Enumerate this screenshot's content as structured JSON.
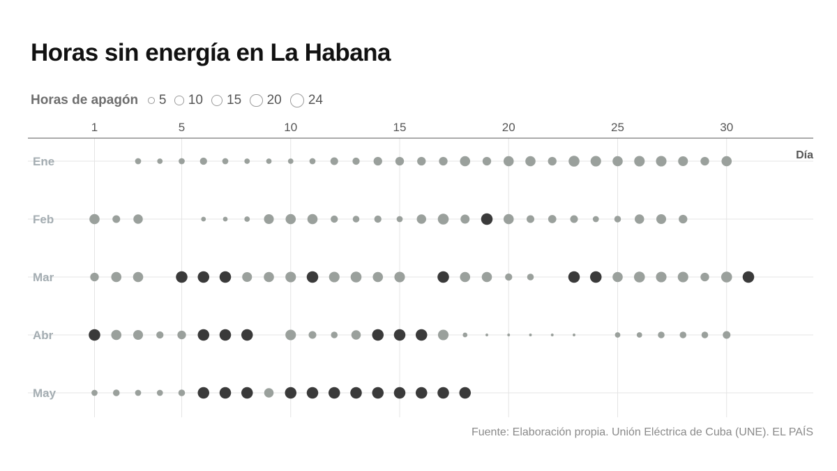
{
  "title": "Horas sin energía en La Habana",
  "legend": {
    "title": "Horas de apagón",
    "items": [
      {
        "label": "5",
        "value": 5
      },
      {
        "label": "10",
        "value": 10
      },
      {
        "label": "15",
        "value": 15
      },
      {
        "label": "20",
        "value": 20
      },
      {
        "label": "24",
        "value": 24
      }
    ]
  },
  "source": "Fuente: Elaboración propia. Unión Eléctrica de Cuba (UNE). EL PAÍS",
  "colors": {
    "normal_dot": "#9aa09c",
    "highlight_dot": "#3a3a3a",
    "month_label": "#a4adb2",
    "grid": "#e4e4e4",
    "axis": "#777777"
  },
  "chart_data": {
    "type": "scatter",
    "title": "Horas sin energía en La Habana",
    "xlabel": "Día",
    "ylabel": "",
    "x_ticks": [
      1,
      5,
      10,
      15,
      20,
      25,
      30
    ],
    "xlim": [
      1,
      31
    ],
    "size_legend": [
      5,
      10,
      15,
      20,
      24
    ],
    "grid": true,
    "months": [
      {
        "name": "Ene",
        "points": [
          {
            "day": 3,
            "hours": 5
          },
          {
            "day": 4,
            "hours": 4
          },
          {
            "day": 5,
            "hours": 5
          },
          {
            "day": 6,
            "hours": 7
          },
          {
            "day": 7,
            "hours": 5
          },
          {
            "day": 8,
            "hours": 4
          },
          {
            "day": 9,
            "hours": 4
          },
          {
            "day": 10,
            "hours": 4
          },
          {
            "day": 11,
            "hours": 5
          },
          {
            "day": 12,
            "hours": 8
          },
          {
            "day": 13,
            "hours": 7
          },
          {
            "day": 14,
            "hours": 10
          },
          {
            "day": 15,
            "hours": 10
          },
          {
            "day": 16,
            "hours": 10
          },
          {
            "day": 17,
            "hours": 10
          },
          {
            "day": 18,
            "hours": 14
          },
          {
            "day": 19,
            "hours": 10
          },
          {
            "day": 20,
            "hours": 14
          },
          {
            "day": 21,
            "hours": 14
          },
          {
            "day": 22,
            "hours": 10
          },
          {
            "day": 23,
            "hours": 16
          },
          {
            "day": 24,
            "hours": 15
          },
          {
            "day": 25,
            "hours": 14
          },
          {
            "day": 26,
            "hours": 15
          },
          {
            "day": 27,
            "hours": 15
          },
          {
            "day": 28,
            "hours": 13
          },
          {
            "day": 29,
            "hours": 10
          },
          {
            "day": 30,
            "hours": 14
          }
        ]
      },
      {
        "name": "Feb",
        "points": [
          {
            "day": 1,
            "hours": 14
          },
          {
            "day": 2,
            "hours": 8
          },
          {
            "day": 3,
            "hours": 12
          },
          {
            "day": 6,
            "hours": 3
          },
          {
            "day": 7,
            "hours": 3
          },
          {
            "day": 8,
            "hours": 4
          },
          {
            "day": 9,
            "hours": 13
          },
          {
            "day": 10,
            "hours": 14
          },
          {
            "day": 11,
            "hours": 14
          },
          {
            "day": 12,
            "hours": 7
          },
          {
            "day": 13,
            "hours": 6
          },
          {
            "day": 14,
            "hours": 7
          },
          {
            "day": 15,
            "hours": 5
          },
          {
            "day": 16,
            "hours": 12
          },
          {
            "day": 17,
            "hours": 16
          },
          {
            "day": 18,
            "hours": 11
          },
          {
            "day": 19,
            "hours": 18,
            "highlight": true
          },
          {
            "day": 20,
            "hours": 14
          },
          {
            "day": 21,
            "hours": 8
          },
          {
            "day": 22,
            "hours": 9
          },
          {
            "day": 23,
            "hours": 8
          },
          {
            "day": 24,
            "hours": 5
          },
          {
            "day": 25,
            "hours": 6
          },
          {
            "day": 26,
            "hours": 12
          },
          {
            "day": 27,
            "hours": 13
          },
          {
            "day": 28,
            "hours": 10
          }
        ]
      },
      {
        "name": "Mar",
        "points": [
          {
            "day": 1,
            "hours": 10
          },
          {
            "day": 2,
            "hours": 14
          },
          {
            "day": 3,
            "hours": 14
          },
          {
            "day": 5,
            "hours": 18,
            "highlight": true
          },
          {
            "day": 6,
            "hours": 18,
            "highlight": true
          },
          {
            "day": 7,
            "hours": 18,
            "highlight": true
          },
          {
            "day": 8,
            "hours": 13
          },
          {
            "day": 9,
            "hours": 14
          },
          {
            "day": 10,
            "hours": 15
          },
          {
            "day": 11,
            "hours": 18,
            "highlight": true
          },
          {
            "day": 12,
            "hours": 15
          },
          {
            "day": 13,
            "hours": 16
          },
          {
            "day": 14,
            "hours": 14
          },
          {
            "day": 15,
            "hours": 15
          },
          {
            "day": 17,
            "hours": 18,
            "highlight": true
          },
          {
            "day": 18,
            "hours": 14
          },
          {
            "day": 19,
            "hours": 14
          },
          {
            "day": 20,
            "hours": 7
          },
          {
            "day": 21,
            "hours": 6
          },
          {
            "day": 23,
            "hours": 18,
            "highlight": true
          },
          {
            "day": 24,
            "hours": 18,
            "highlight": true
          },
          {
            "day": 25,
            "hours": 14
          },
          {
            "day": 26,
            "hours": 16
          },
          {
            "day": 27,
            "hours": 15
          },
          {
            "day": 28,
            "hours": 15
          },
          {
            "day": 29,
            "hours": 10
          },
          {
            "day": 30,
            "hours": 16
          },
          {
            "day": 31,
            "hours": 18,
            "highlight": true
          }
        ]
      },
      {
        "name": "Abr",
        "points": [
          {
            "day": 1,
            "hours": 18,
            "highlight": true
          },
          {
            "day": 2,
            "hours": 14
          },
          {
            "day": 3,
            "hours": 13
          },
          {
            "day": 4,
            "hours": 7
          },
          {
            "day": 5,
            "hours": 10
          },
          {
            "day": 6,
            "hours": 18,
            "highlight": true
          },
          {
            "day": 7,
            "hours": 18,
            "highlight": true
          },
          {
            "day": 8,
            "hours": 18,
            "highlight": true
          },
          {
            "day": 10,
            "hours": 15
          },
          {
            "day": 11,
            "hours": 8
          },
          {
            "day": 12,
            "hours": 6
          },
          {
            "day": 13,
            "hours": 12
          },
          {
            "day": 14,
            "hours": 18,
            "highlight": true
          },
          {
            "day": 15,
            "hours": 18,
            "highlight": true
          },
          {
            "day": 16,
            "hours": 18,
            "highlight": true
          },
          {
            "day": 17,
            "hours": 15
          },
          {
            "day": 18,
            "hours": 3
          },
          {
            "day": 19,
            "hours": 1
          },
          {
            "day": 20,
            "hours": 1
          },
          {
            "day": 21,
            "hours": 1
          },
          {
            "day": 22,
            "hours": 1
          },
          {
            "day": 23,
            "hours": 1
          },
          {
            "day": 25,
            "hours": 4
          },
          {
            "day": 26,
            "hours": 4
          },
          {
            "day": 27,
            "hours": 6
          },
          {
            "day": 28,
            "hours": 6
          },
          {
            "day": 29,
            "hours": 6
          },
          {
            "day": 30,
            "hours": 8
          }
        ]
      },
      {
        "name": "May",
        "points": [
          {
            "day": 1,
            "hours": 5
          },
          {
            "day": 2,
            "hours": 6
          },
          {
            "day": 3,
            "hours": 5
          },
          {
            "day": 4,
            "hours": 5
          },
          {
            "day": 5,
            "hours": 6
          },
          {
            "day": 6,
            "hours": 18,
            "highlight": true
          },
          {
            "day": 7,
            "hours": 18,
            "highlight": true
          },
          {
            "day": 8,
            "hours": 18,
            "highlight": true
          },
          {
            "day": 9,
            "hours": 12
          },
          {
            "day": 10,
            "hours": 18,
            "highlight": true
          },
          {
            "day": 11,
            "hours": 18,
            "highlight": true
          },
          {
            "day": 12,
            "hours": 18,
            "highlight": true
          },
          {
            "day": 13,
            "hours": 18,
            "highlight": true
          },
          {
            "day": 14,
            "hours": 18,
            "highlight": true
          },
          {
            "day": 15,
            "hours": 18,
            "highlight": true
          },
          {
            "day": 16,
            "hours": 18,
            "highlight": true
          },
          {
            "day": 17,
            "hours": 18,
            "highlight": true
          },
          {
            "day": 18,
            "hours": 18,
            "highlight": true
          }
        ]
      }
    ]
  }
}
